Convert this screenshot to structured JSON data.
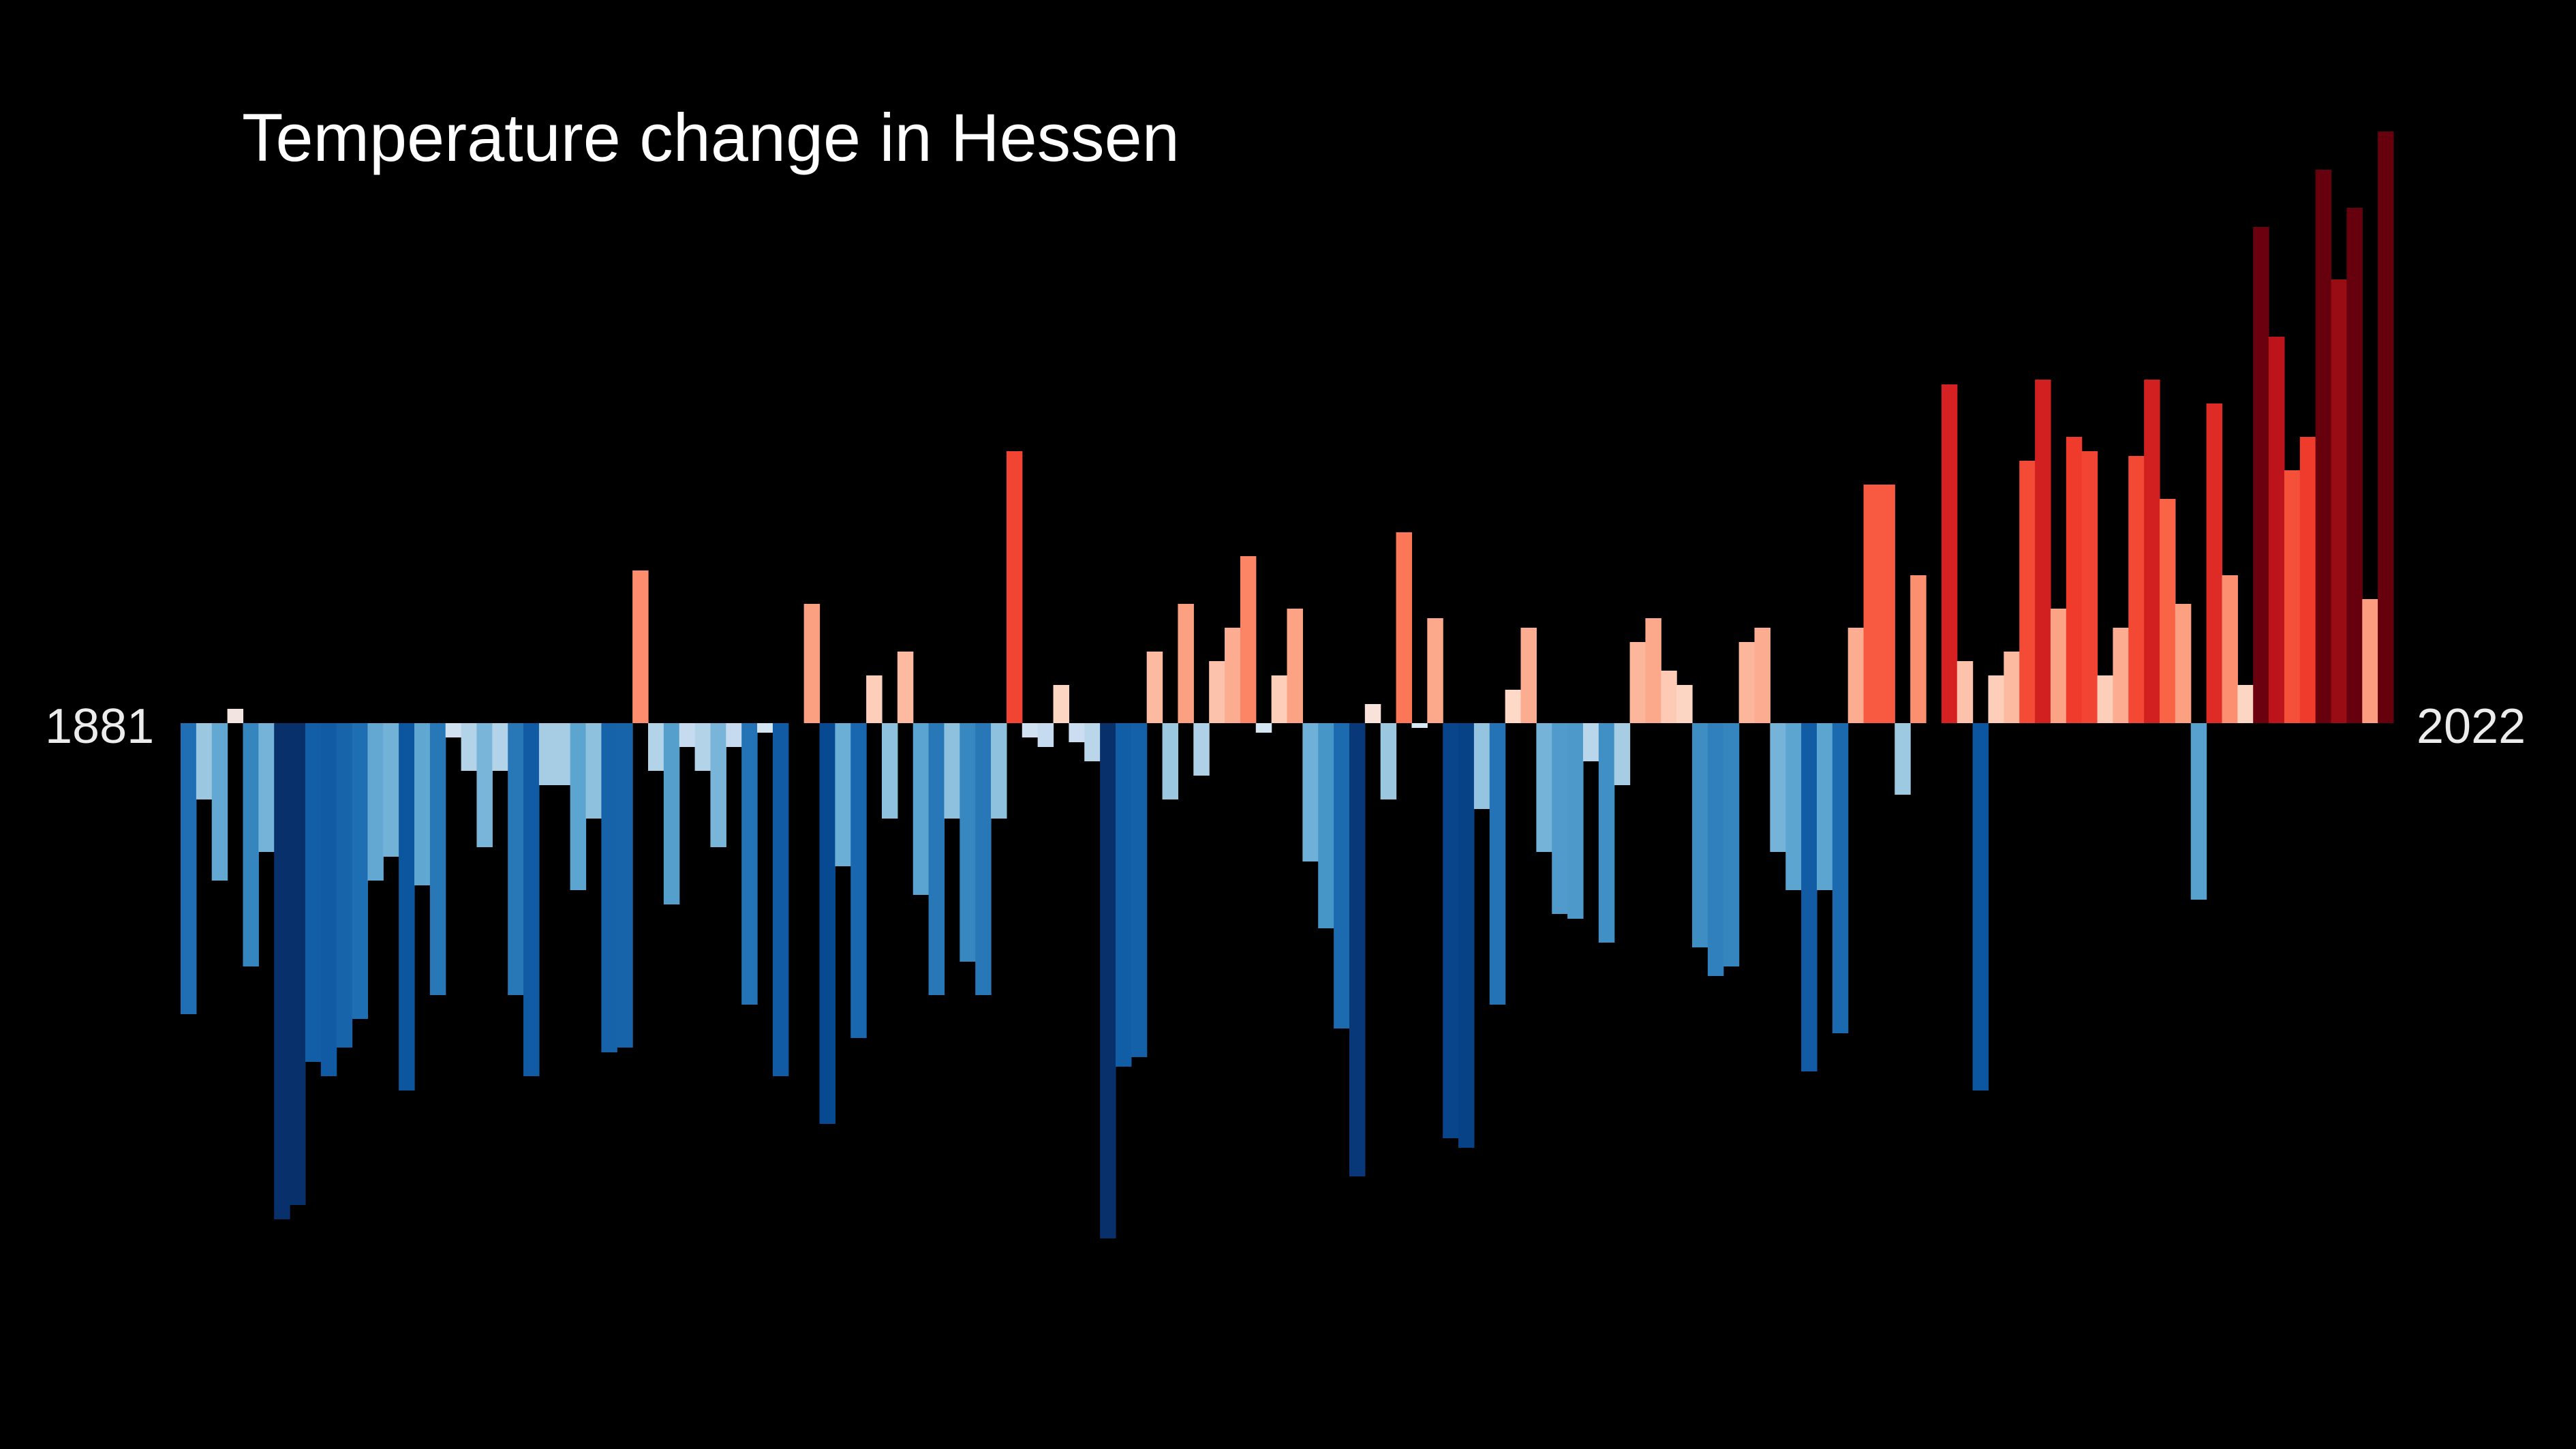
{
  "title": "Temperature change in Hessen",
  "start_label": "1881",
  "end_label": "2022",
  "colors": {
    "background": "#000000",
    "text": "#ffffff",
    "palette": "RdBu_r (blue cold, red warm)"
  },
  "chart_data": {
    "type": "bar",
    "title": "Temperature change in Hessen",
    "xlabel": "",
    "ylabel": "",
    "x": [
      1881,
      1882,
      1883,
      1884,
      1885,
      1886,
      1887,
      1888,
      1889,
      1890,
      1891,
      1892,
      1893,
      1894,
      1895,
      1896,
      1897,
      1898,
      1899,
      1900,
      1901,
      1902,
      1903,
      1904,
      1905,
      1906,
      1907,
      1908,
      1909,
      1910,
      1911,
      1912,
      1913,
      1914,
      1915,
      1916,
      1917,
      1918,
      1919,
      1920,
      1921,
      1922,
      1923,
      1924,
      1925,
      1926,
      1927,
      1928,
      1929,
      1930,
      1931,
      1932,
      1933,
      1934,
      1935,
      1936,
      1937,
      1938,
      1939,
      1940,
      1941,
      1942,
      1943,
      1944,
      1945,
      1946,
      1947,
      1948,
      1949,
      1950,
      1951,
      1952,
      1953,
      1954,
      1955,
      1956,
      1957,
      1958,
      1959,
      1960,
      1961,
      1962,
      1963,
      1964,
      1965,
      1966,
      1967,
      1968,
      1969,
      1970,
      1971,
      1972,
      1973,
      1974,
      1975,
      1976,
      1977,
      1978,
      1979,
      1980,
      1981,
      1982,
      1983,
      1984,
      1985,
      1986,
      1987,
      1988,
      1989,
      1990,
      1991,
      1992,
      1993,
      1994,
      1995,
      1996,
      1997,
      1998,
      1999,
      2000,
      2001,
      2002,
      2003,
      2004,
      2005,
      2006,
      2007,
      2008,
      2009,
      2010,
      2011,
      2012,
      2013,
      2014,
      2015,
      2016,
      2017,
      2018,
      2019,
      2020,
      2021,
      2022
    ],
    "values": [
      -0.61,
      -0.16,
      -0.33,
      0.03,
      -0.51,
      -0.27,
      -1.04,
      -1.01,
      -0.71,
      -0.74,
      -0.68,
      -0.62,
      -0.33,
      -0.28,
      -0.77,
      -0.34,
      -0.57,
      -0.03,
      -0.1,
      -0.26,
      -0.1,
      -0.57,
      -0.74,
      -0.13,
      -0.13,
      -0.35,
      -0.2,
      -0.69,
      -0.68,
      0.32,
      -0.1,
      -0.38,
      -0.05,
      -0.1,
      -0.26,
      -0.05,
      -0.59,
      -0.02,
      -0.74,
      0.0,
      0.25,
      -0.84,
      -0.3,
      -0.66,
      0.1,
      -0.2,
      0.15,
      -0.36,
      -0.57,
      -0.2,
      -0.5,
      -0.57,
      -0.2,
      0.57,
      -0.03,
      -0.05,
      0.08,
      -0.04,
      -0.08,
      -1.08,
      -0.72,
      -0.7,
      0.15,
      -0.16,
      0.25,
      -0.11,
      0.13,
      0.2,
      0.35,
      -0.02,
      0.1,
      0.24,
      -0.29,
      -0.43,
      -0.64,
      -0.95,
      0.04,
      -0.16,
      0.4,
      -0.01,
      0.22,
      -0.87,
      -0.89,
      -0.18,
      -0.59,
      0.07,
      0.2,
      -0.27,
      -0.4,
      -0.41,
      -0.08,
      -0.46,
      -0.13,
      0.17,
      0.22,
      0.11,
      0.08,
      -0.47,
      -0.53,
      -0.51,
      0.17,
      0.2,
      -0.27,
      -0.35,
      -0.73,
      -0.35,
      -0.65,
      0.2,
      0.5,
      0.5,
      -0.15,
      0.31,
      0.0,
      0.71,
      0.13,
      -0.77,
      0.1,
      0.15,
      0.55,
      0.72,
      0.24,
      0.6,
      0.57,
      0.1,
      0.2,
      0.56,
      0.72,
      0.47,
      0.25,
      -0.37,
      0.67,
      0.31,
      0.08,
      1.04,
      0.81,
      0.53,
      0.6,
      1.16,
      0.93,
      1.08,
      0.26,
      1.24
    ],
    "ylim": [
      -1.2,
      1.3
    ],
    "grid": false,
    "legend": "none"
  }
}
